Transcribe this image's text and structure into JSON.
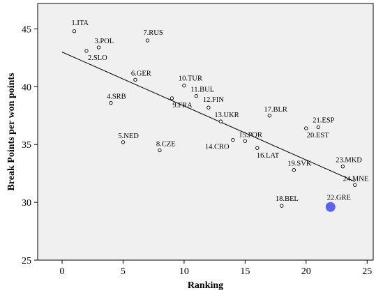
{
  "chart_data": {
    "type": "scatter",
    "title": "",
    "xlabel": "Ranking",
    "ylabel": "Break Points per won points",
    "xlim": [
      -2,
      25.5
    ],
    "ylim": [
      25,
      47.2
    ],
    "x_ticks": [
      0,
      5,
      10,
      15,
      20,
      25
    ],
    "y_ticks": [
      25,
      30,
      35,
      40,
      45
    ],
    "grid": false,
    "legend": "none",
    "colors": {
      "background": "#f0f0f0",
      "marker": "#000000",
      "highlight": "#5b64ee",
      "fit_line": "#000000"
    },
    "fit_line": {
      "x": [
        0,
        24
      ],
      "y": [
        43.0,
        31.8
      ]
    },
    "points": [
      {
        "label": "1.ITA",
        "x": 1,
        "y": 44.8
      },
      {
        "label": "2.SLO",
        "x": 2,
        "y": 43.1
      },
      {
        "label": "3.POL",
        "x": 3,
        "y": 43.4
      },
      {
        "label": "4.SRB",
        "x": 4,
        "y": 38.6
      },
      {
        "label": "5.NED",
        "x": 5,
        "y": 35.2
      },
      {
        "label": "6.GER",
        "x": 6,
        "y": 40.6
      },
      {
        "label": "7.RUS",
        "x": 7,
        "y": 44.0
      },
      {
        "label": "8.CZE",
        "x": 8,
        "y": 34.5
      },
      {
        "label": "9.FRA",
        "x": 9,
        "y": 39.0
      },
      {
        "label": "10.TUR",
        "x": 10,
        "y": 40.1
      },
      {
        "label": "11.BUL",
        "x": 11,
        "y": 39.2
      },
      {
        "label": "12.FIN",
        "x": 12,
        "y": 38.2
      },
      {
        "label": "13.UKR",
        "x": 13,
        "y": 37.0
      },
      {
        "label": "14.CRO",
        "x": 14,
        "y": 35.4
      },
      {
        "label": "15.POR",
        "x": 15,
        "y": 35.3
      },
      {
        "label": "16.LAT",
        "x": 16,
        "y": 34.7
      },
      {
        "label": "17.BLR",
        "x": 17,
        "y": 37.5
      },
      {
        "label": "18.BEL",
        "x": 18,
        "y": 29.7
      },
      {
        "label": "19.SVK",
        "x": 19,
        "y": 32.8
      },
      {
        "label": "20.EST",
        "x": 20,
        "y": 36.4
      },
      {
        "label": "21.ESP",
        "x": 21,
        "y": 36.5
      },
      {
        "label": "22.GRE",
        "x": 22,
        "y": 29.6,
        "highlight": true
      },
      {
        "label": "23.MKD",
        "x": 23,
        "y": 33.1
      },
      {
        "label": "24.MNE",
        "x": 24,
        "y": 31.5
      }
    ]
  }
}
